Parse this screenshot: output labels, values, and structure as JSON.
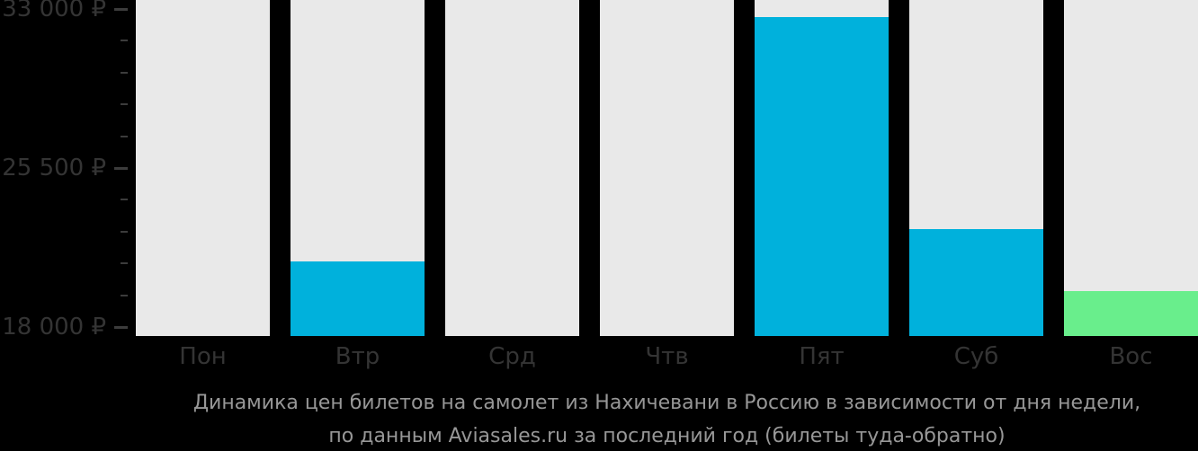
{
  "page": {
    "background": "#000000"
  },
  "chart_data": {
    "type": "bar",
    "title": "Динамика цен билетов на самолет из Нахичевани в Россию в зависимости от дня недели, по данным Aviasales.ru за последний год (билеты туда-обратно)",
    "title_lines": [
      "Динамика цен билетов на самолет из Нахичевани в Россию в зависимости от дня недели,",
      "по данным Aviasales.ru за последний год (билеты туда-обратно)"
    ],
    "categories": [
      "Пон",
      "Втр",
      "Срд",
      "Чтв",
      "Пят",
      "Суб",
      "Вос"
    ],
    "category_keys": [
      "mon",
      "tue",
      "wed",
      "thu",
      "fri",
      "sat",
      "sun"
    ],
    "values": [
      null,
      21100,
      null,
      null,
      32600,
      22600,
      19700
    ],
    "bar_colors": [
      null,
      "#00b1dc",
      null,
      null,
      "#00b1dc",
      "#00b1dc",
      "#69ee8c"
    ],
    "xlabel": "",
    "ylabel": "",
    "grid": false,
    "legend": "none",
    "ylim": [
      17600,
      33000
    ],
    "y_axis": {
      "tick_values": [
        33000,
        25500,
        18000
      ],
      "tick_labels": [
        "33 000 ₽",
        "25 500 ₽",
        "18 000 ₽"
      ],
      "minor_ticks_between_majors": 4,
      "currency": "₽"
    },
    "colors": {
      "background": "#000000",
      "bar_blue": "#00b1dc",
      "bar_green_min_price": "#69ee8c",
      "no_data_column": "#e9e9e9",
      "axis_text": "#343434",
      "tick": "#3c3c3c",
      "caption_text": "#979797"
    }
  }
}
